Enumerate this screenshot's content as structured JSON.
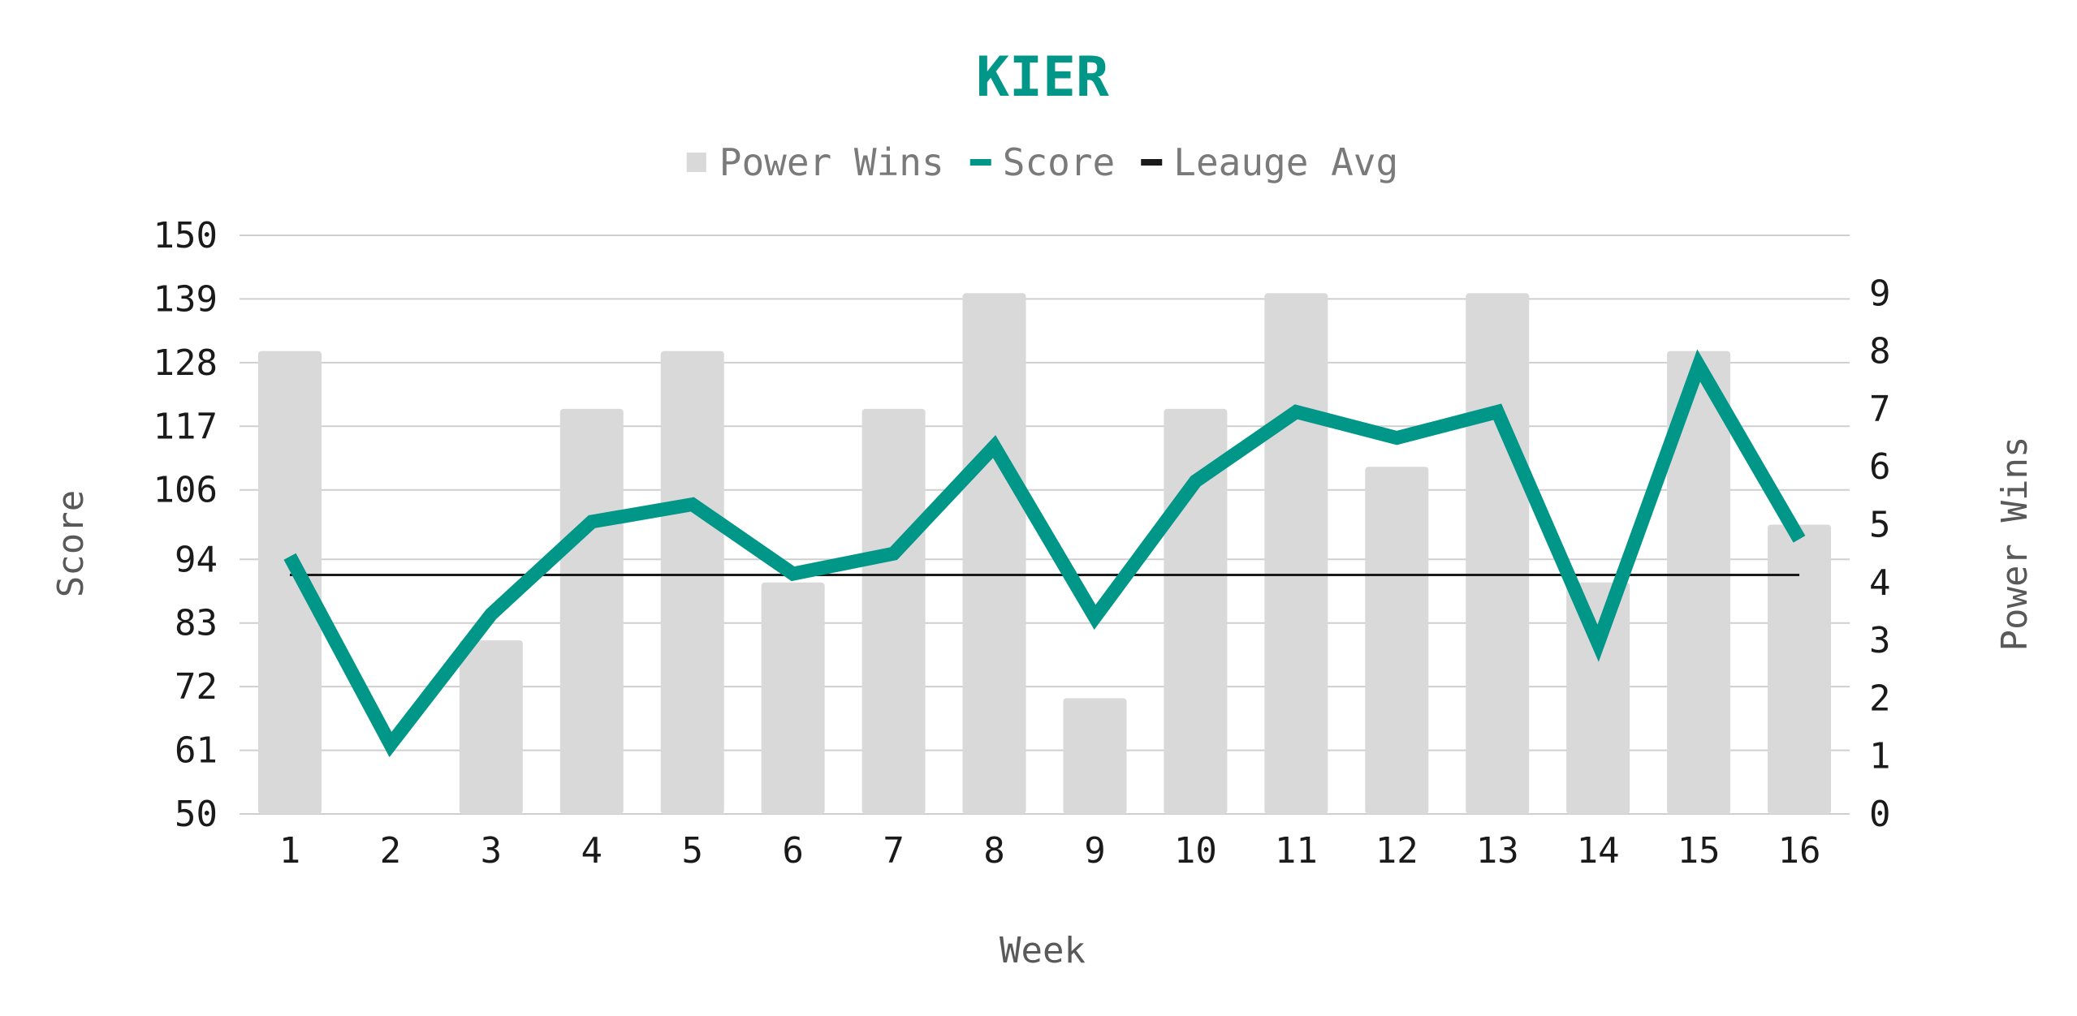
{
  "chart_data": {
    "type": "bar",
    "title": "KIER",
    "xlabel": "Week",
    "ylabel": "Score",
    "y2label": "Power Wins",
    "categories": [
      "1",
      "2",
      "3",
      "4",
      "5",
      "6",
      "7",
      "8",
      "9",
      "10",
      "11",
      "12",
      "13",
      "14",
      "15",
      "16"
    ],
    "ylim": [
      50,
      150
    ],
    "yticks": [
      50,
      61,
      72,
      83,
      94,
      106,
      117,
      128,
      139,
      150
    ],
    "y2lim": [
      0,
      10
    ],
    "y2ticks": [
      0,
      1,
      2,
      3,
      4,
      5,
      6,
      7,
      8,
      9
    ],
    "grid": true,
    "legend_position": "top",
    "series": [
      {
        "name": "Power Wins",
        "type": "bar",
        "axis": "right",
        "color": "#d9d9d9",
        "values": [
          8,
          0,
          3,
          7,
          8,
          4,
          7,
          9,
          2,
          7,
          9,
          6,
          9,
          4,
          8,
          5
        ]
      },
      {
        "name": "Score",
        "type": "line",
        "axis": "left",
        "color": "#009688",
        "values": [
          94.5,
          62,
          84.5,
          100.5,
          103.5,
          91.5,
          95,
          113.5,
          84,
          107.5,
          119.5,
          115,
          119.5,
          79.5,
          127.5,
          97.5
        ]
      },
      {
        "name": "Leauge Avg",
        "type": "line",
        "axis": "left",
        "color": "#1a1a1a",
        "values": [
          91.3,
          91.3,
          91.3,
          91.3,
          91.3,
          91.3,
          91.3,
          91.3,
          91.3,
          91.3,
          91.3,
          91.3,
          91.3,
          91.3,
          91.3,
          91.3
        ]
      }
    ]
  }
}
